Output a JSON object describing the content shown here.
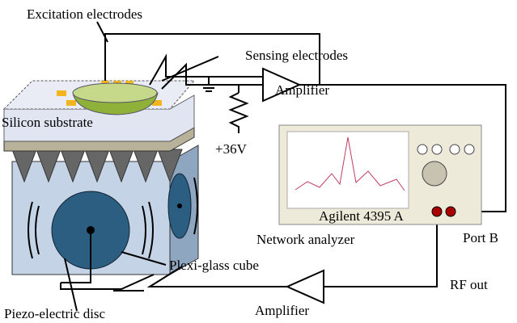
{
  "labels": {
    "excitation": "Excitation electrodes",
    "sensing": "Sensing electrodes",
    "amplifier_top": "Amplifier",
    "voltage": "+36V",
    "substrate": "Silicon substrate",
    "instrument": "Agilent 4395 A",
    "analyzer": "Network analyzer",
    "port_b": "Port B",
    "cube": "Plexi-glass cube",
    "rf_out": "RF out",
    "amplifier_bottom": "Amplifier",
    "disc": "Piezo-electric disc"
  }
}
